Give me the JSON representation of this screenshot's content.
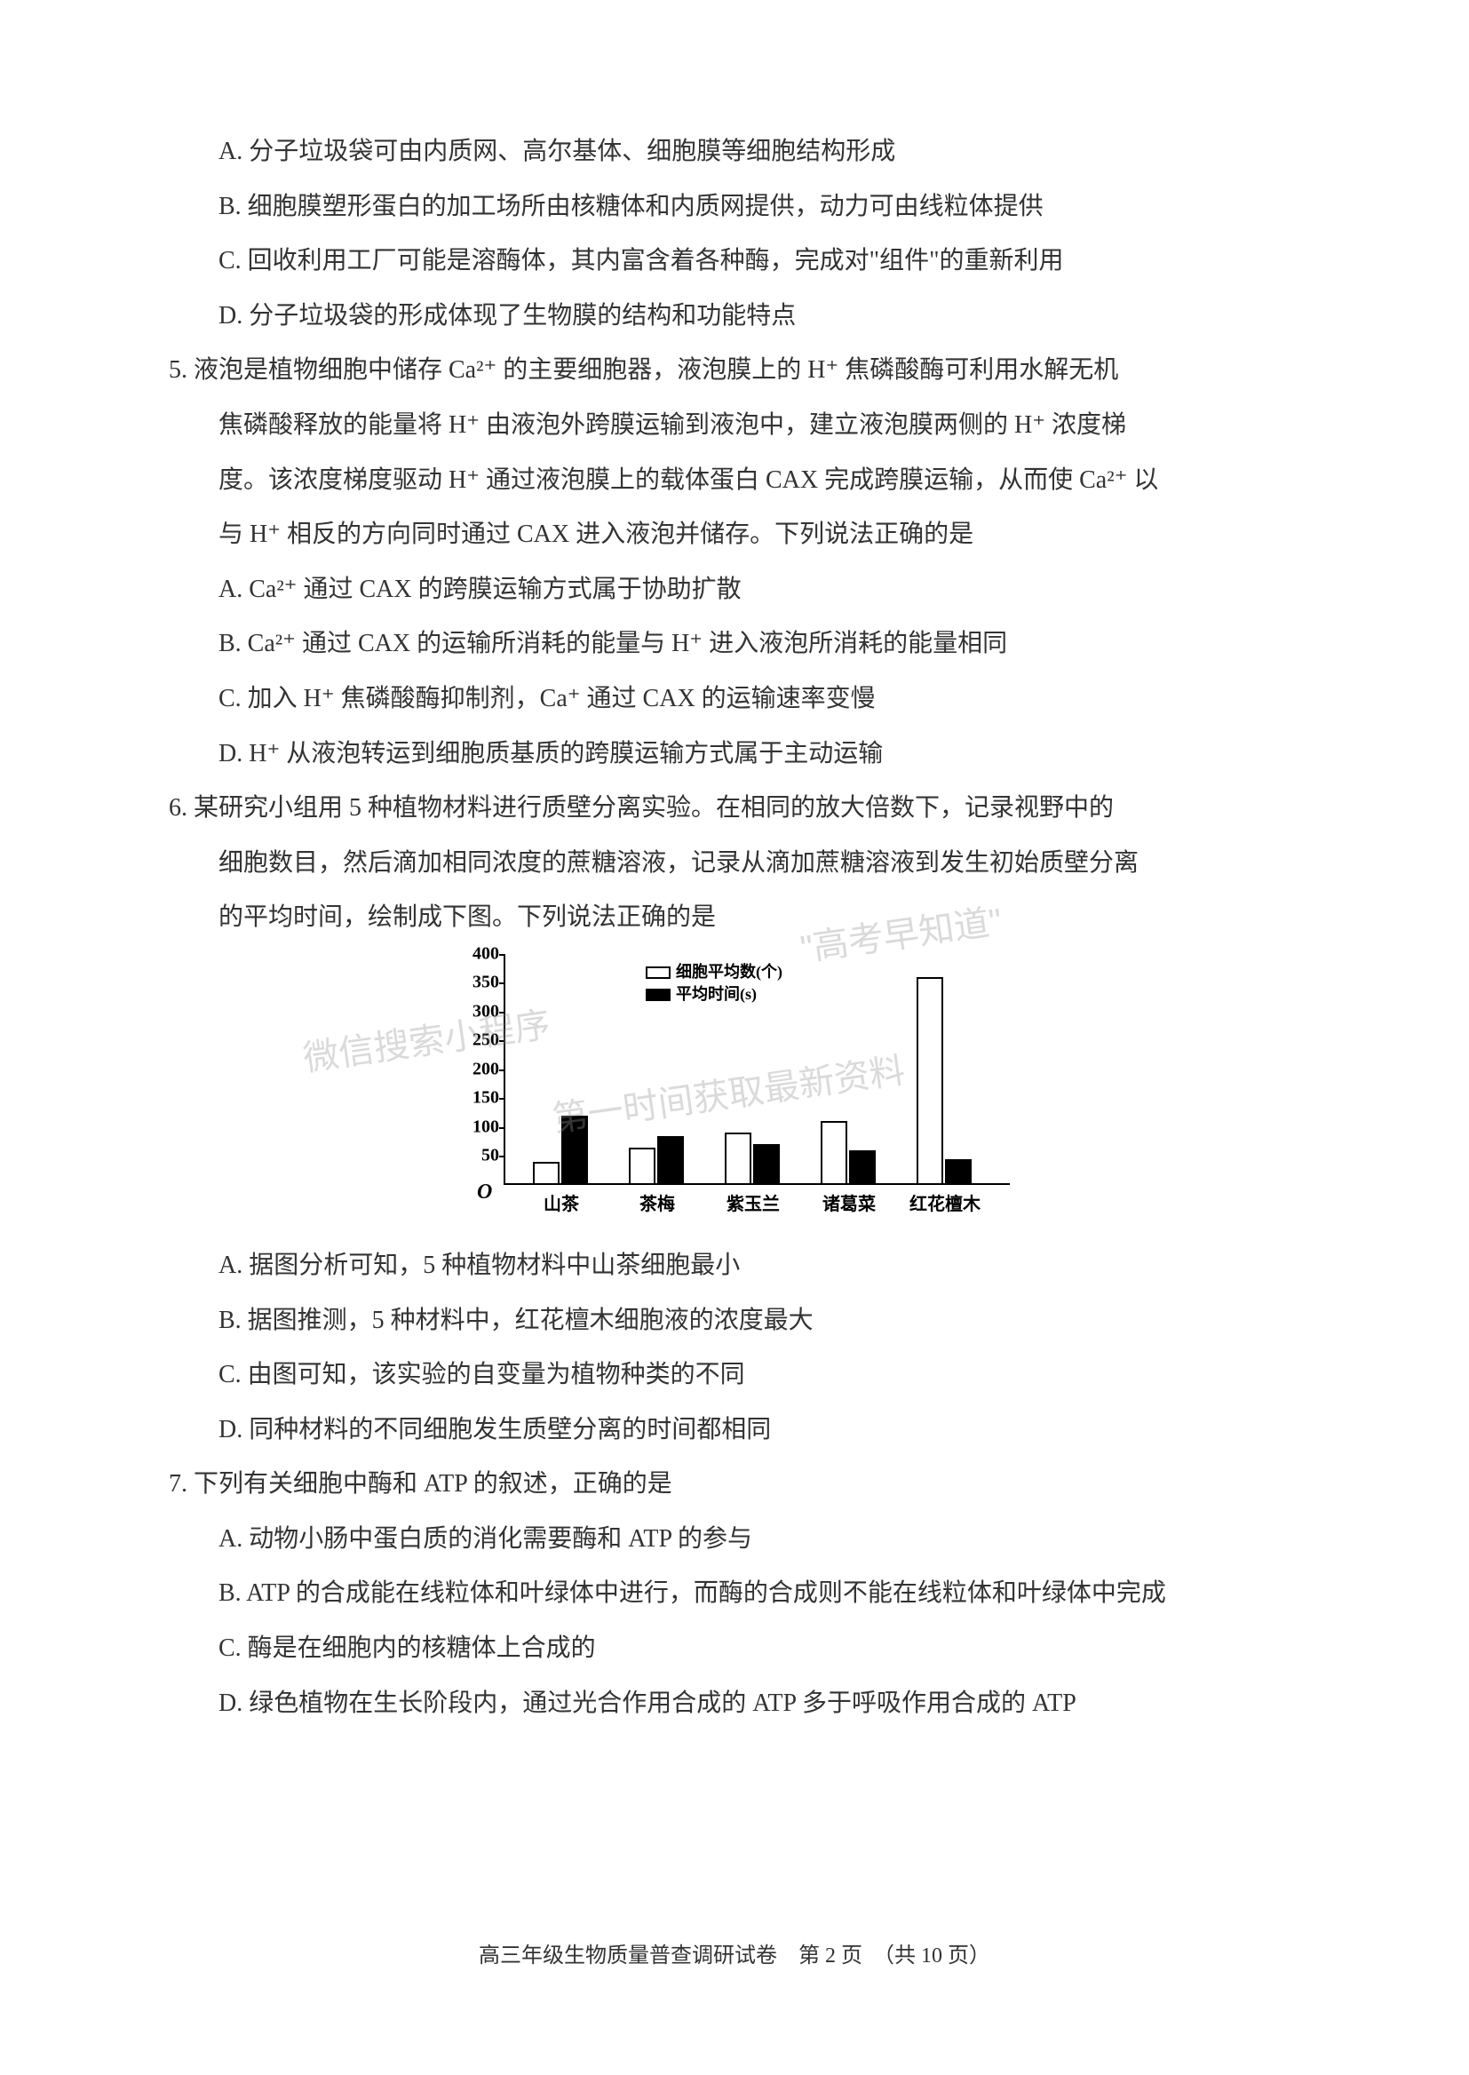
{
  "q4_options": {
    "A": "A. 分子垃圾袋可由内质网、高尔基体、细胞膜等细胞结构形成",
    "B": "B. 细胞膜塑形蛋白的加工场所由核糖体和内质网提供，动力可由线粒体提供",
    "C": "C. 回收利用工厂可能是溶酶体，其内富含着各种酶，完成对\"组件\"的重新利用",
    "D": "D. 分子垃圾袋的形成体现了生物膜的结构和功能特点"
  },
  "q5": {
    "stem1": "5. 液泡是植物细胞中储存 Ca²⁺ 的主要细胞器，液泡膜上的 H⁺ 焦磷酸酶可利用水解无机",
    "stem2": "焦磷酸释放的能量将 H⁺ 由液泡外跨膜运输到液泡中，建立液泡膜两侧的 H⁺ 浓度梯",
    "stem3": "度。该浓度梯度驱动 H⁺ 通过液泡膜上的载体蛋白 CAX 完成跨膜运输，从而使 Ca²⁺ 以",
    "stem4": "与 H⁺ 相反的方向同时通过 CAX 进入液泡并储存。下列说法正确的是",
    "A": "A. Ca²⁺ 通过 CAX 的跨膜运输方式属于协助扩散",
    "B": "B. Ca²⁺ 通过 CAX 的运输所消耗的能量与 H⁺ 进入液泡所消耗的能量相同",
    "C": "C. 加入 H⁺ 焦磷酸酶抑制剂，Ca⁺ 通过 CAX 的运输速率变慢",
    "D": "D. H⁺ 从液泡转运到细胞质基质的跨膜运输方式属于主动运输"
  },
  "q6": {
    "stem1": "6. 某研究小组用 5 种植物材料进行质壁分离实验。在相同的放大倍数下，记录视野中的",
    "stem2": "细胞数目，然后滴加相同浓度的蔗糖溶液，记录从滴加蔗糖溶液到发生初始质壁分离",
    "stem3": "的平均时间，绘制成下图。下列说法正确的是",
    "A": "A. 据图分析可知，5 种植物材料中山茶细胞最小",
    "B": "B. 据图推测，5 种材料中，红花檀木细胞液的浓度最大",
    "C": "C. 由图可知，该实验的自变量为植物种类的不同",
    "D": "D. 同种材料的不同细胞发生质壁分离的时间都相同"
  },
  "q7": {
    "stem": "7. 下列有关细胞中酶和 ATP 的叙述，正确的是",
    "A": "A. 动物小肠中蛋白质的消化需要酶和 ATP 的参与",
    "B": "B. ATP 的合成能在线粒体和叶绿体中进行，而酶的合成则不能在线粒体和叶绿体中完成",
    "C": "C. 酶是在细胞内的核糖体上合成的",
    "D": "D. 绿色植物在生长阶段内，通过光合作用合成的 ATP 多于呼吸作用合成的 ATP"
  },
  "chart": {
    "type": "bar",
    "y_max": 400,
    "y_ticks": [
      50,
      100,
      150,
      200,
      250,
      300,
      350,
      400
    ],
    "origin": "O",
    "legend": {
      "white": "细胞平均数(个)",
      "black": "平均时间(s)"
    },
    "categories": [
      "山茶",
      "茶梅",
      "紫玉兰",
      "诸葛菜",
      "红花檀木"
    ],
    "white_values": [
      40,
      65,
      90,
      110,
      360
    ],
    "black_values": [
      120,
      85,
      70,
      60,
      45
    ],
    "bar_white_color": "#ffffff",
    "bar_black_color": "#000000",
    "axis_color": "#000000",
    "label_fontsize": 20
  },
  "watermarks": {
    "w1": "\"高考早知道\"",
    "w2": "微信搜索小程序",
    "w3": "第一时间获取最新资料"
  },
  "footer": "高三年级生物质量普查调研试卷　第 2 页　（共 10 页）"
}
